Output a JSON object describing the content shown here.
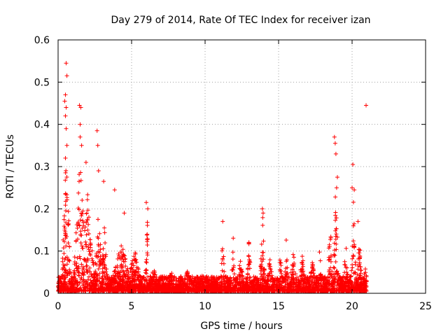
{
  "chart_data": {
    "type": "scatter",
    "title": "Day 279 of 2014, Rate Of TEC Index for receiver izan",
    "xlabel": "GPS time / hours",
    "ylabel": "ROTI / TECUs",
    "xlim": [
      0,
      25
    ],
    "ylim": [
      0,
      0.6
    ],
    "xticks": [
      0,
      5,
      10,
      15,
      20,
      25
    ],
    "yticks": [
      0,
      0.1,
      0.2,
      0.3,
      0.4,
      0.5,
      0.6
    ],
    "xtick_labels": [
      "0",
      "5",
      "10",
      "15",
      "20",
      "25"
    ],
    "ytick_labels": [
      "0",
      "0.1",
      "0.2",
      "0.3",
      "0.4",
      "0.5",
      "0.6"
    ],
    "grid": true,
    "marker": "+",
    "color": "#ff0000",
    "highlighted_points": [
      {
        "x": 0.55,
        "y": 0.545
      },
      {
        "x": 0.6,
        "y": 0.515
      },
      {
        "x": 0.5,
        "y": 0.47
      },
      {
        "x": 0.45,
        "y": 0.455
      },
      {
        "x": 0.55,
        "y": 0.44
      },
      {
        "x": 0.5,
        "y": 0.42
      },
      {
        "x": 0.55,
        "y": 0.39
      },
      {
        "x": 0.6,
        "y": 0.35
      },
      {
        "x": 0.5,
        "y": 0.32
      },
      {
        "x": 1.45,
        "y": 0.445
      },
      {
        "x": 1.55,
        "y": 0.44
      },
      {
        "x": 1.5,
        "y": 0.4
      },
      {
        "x": 1.5,
        "y": 0.37
      },
      {
        "x": 1.6,
        "y": 0.35
      },
      {
        "x": 1.9,
        "y": 0.31
      },
      {
        "x": 2.65,
        "y": 0.385
      },
      {
        "x": 2.7,
        "y": 0.35
      },
      {
        "x": 2.75,
        "y": 0.29
      },
      {
        "x": 3.1,
        "y": 0.265
      },
      {
        "x": 3.85,
        "y": 0.245
      },
      {
        "x": 4.5,
        "y": 0.19
      },
      {
        "x": 6.0,
        "y": 0.215
      },
      {
        "x": 6.1,
        "y": 0.2
      },
      {
        "x": 11.2,
        "y": 0.17
      },
      {
        "x": 13.9,
        "y": 0.2
      },
      {
        "x": 13.95,
        "y": 0.19
      },
      {
        "x": 18.8,
        "y": 0.37
      },
      {
        "x": 18.85,
        "y": 0.355
      },
      {
        "x": 18.9,
        "y": 0.33
      },
      {
        "x": 19.0,
        "y": 0.275
      },
      {
        "x": 18.95,
        "y": 0.25
      },
      {
        "x": 20.05,
        "y": 0.305
      },
      {
        "x": 20.0,
        "y": 0.25
      },
      {
        "x": 20.15,
        "y": 0.245
      },
      {
        "x": 20.4,
        "y": 0.17
      },
      {
        "x": 20.95,
        "y": 0.445
      }
    ],
    "spikes": [
      {
        "x": 0.55,
        "peak": 0.33,
        "w": 0.35
      },
      {
        "x": 1.5,
        "peak": 0.32,
        "w": 0.5
      },
      {
        "x": 2.0,
        "peak": 0.24,
        "w": 0.6
      },
      {
        "x": 2.75,
        "peak": 0.2,
        "w": 0.3
      },
      {
        "x": 3.15,
        "peak": 0.16,
        "w": 0.25
      },
      {
        "x": 4.3,
        "peak": 0.12,
        "w": 0.8
      },
      {
        "x": 5.2,
        "peak": 0.1,
        "w": 0.6
      },
      {
        "x": 6.05,
        "peak": 0.2,
        "w": 0.15
      },
      {
        "x": 6.5,
        "peak": 0.06,
        "w": 0.5
      },
      {
        "x": 7.7,
        "peak": 0.05,
        "w": 0.4
      },
      {
        "x": 8.8,
        "peak": 0.05,
        "w": 0.5
      },
      {
        "x": 9.9,
        "peak": 0.05,
        "w": 0.5
      },
      {
        "x": 11.2,
        "peak": 0.16,
        "w": 0.15
      },
      {
        "x": 11.9,
        "peak": 0.14,
        "w": 0.15
      },
      {
        "x": 12.4,
        "peak": 0.08,
        "w": 0.3
      },
      {
        "x": 13.0,
        "peak": 0.15,
        "w": 0.15
      },
      {
        "x": 13.9,
        "peak": 0.2,
        "w": 0.2
      },
      {
        "x": 14.4,
        "peak": 0.08,
        "w": 0.3
      },
      {
        "x": 15.1,
        "peak": 0.12,
        "w": 0.15
      },
      {
        "x": 15.5,
        "peak": 0.15,
        "w": 0.15
      },
      {
        "x": 16.0,
        "peak": 0.1,
        "w": 0.3
      },
      {
        "x": 16.6,
        "peak": 0.1,
        "w": 0.3
      },
      {
        "x": 17.3,
        "peak": 0.07,
        "w": 0.3
      },
      {
        "x": 17.8,
        "peak": 0.12,
        "w": 0.15
      },
      {
        "x": 18.5,
        "peak": 0.19,
        "w": 0.2
      },
      {
        "x": 18.9,
        "peak": 0.3,
        "w": 0.2
      },
      {
        "x": 19.6,
        "peak": 0.15,
        "w": 0.2
      },
      {
        "x": 20.1,
        "peak": 0.24,
        "w": 0.2
      },
      {
        "x": 20.5,
        "peak": 0.12,
        "w": 0.25
      },
      {
        "x": 20.85,
        "peak": 0.09,
        "w": 0.2
      }
    ],
    "data_extent_hours": [
      0.0,
      21.0
    ]
  }
}
